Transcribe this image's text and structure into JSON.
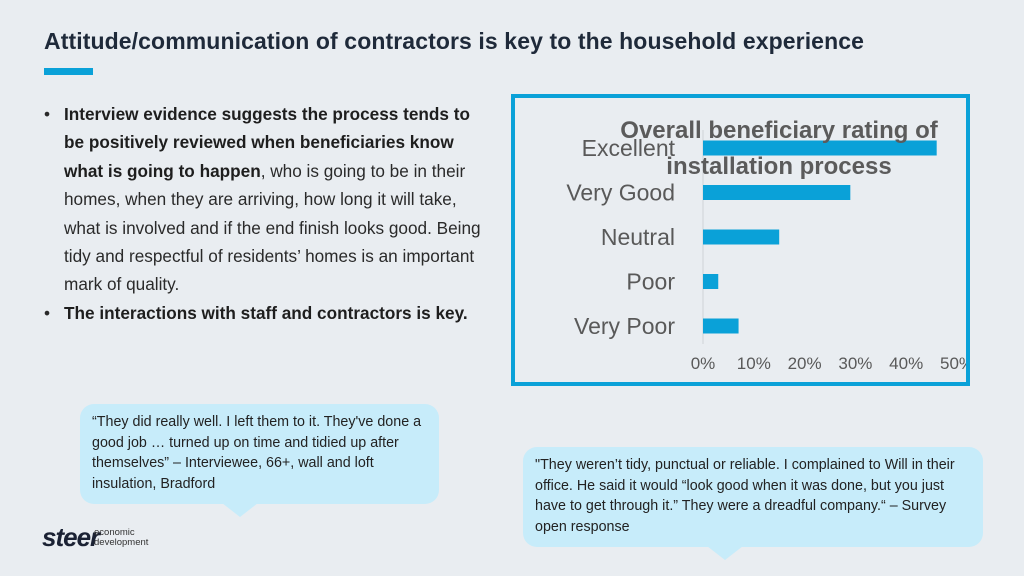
{
  "title": "Attitude/communication of contractors is key to the household experience",
  "bullets": [
    {
      "bold": "Interview evidence suggests the process tends to be positively reviewed when beneficiaries know what is going to happen",
      "rest": ", who is going to be in their homes, when they are arriving, how long it will take, what is involved and if the end finish looks good. Being tidy and respectful of residents’ homes is an important mark of quality."
    },
    {
      "bold": "The interactions with staff and contractors is key.",
      "rest": ""
    }
  ],
  "chart_data": {
    "type": "bar",
    "orientation": "horizontal",
    "title": "Overall beneficiary rating of installation process",
    "categories": [
      "Excellent",
      "Very Good",
      "Neutral",
      "Poor",
      "Very Poor"
    ],
    "values": [
      46,
      29,
      15,
      3,
      7
    ],
    "xlim": [
      0,
      50
    ],
    "xticks": [
      "0%",
      "10%",
      "20%",
      "30%",
      "40%",
      "50%"
    ],
    "bar_color": "#0aa1d8",
    "grid": false,
    "legend": "none"
  },
  "quotes": [
    {
      "text": "“They did really well. I left them to it. They've done a good job … turned up on time and tidied up after themselves” – Interviewee, 66+, wall and loft insulation, Bradford"
    },
    {
      "text": "\"They weren’t tidy, punctual or reliable. I complained to Will in their office. He said it would “look good when it was done, but you just have to get through it.” They were a dreadful company.“ – Survey open response"
    }
  ],
  "logo": {
    "word": "steer",
    "sub_line1": "economic",
    "sub_line2": "development"
  },
  "colors": {
    "accent": "#0aa1d8",
    "bubble": "#c7ecfa",
    "background": "#e9edf1"
  }
}
